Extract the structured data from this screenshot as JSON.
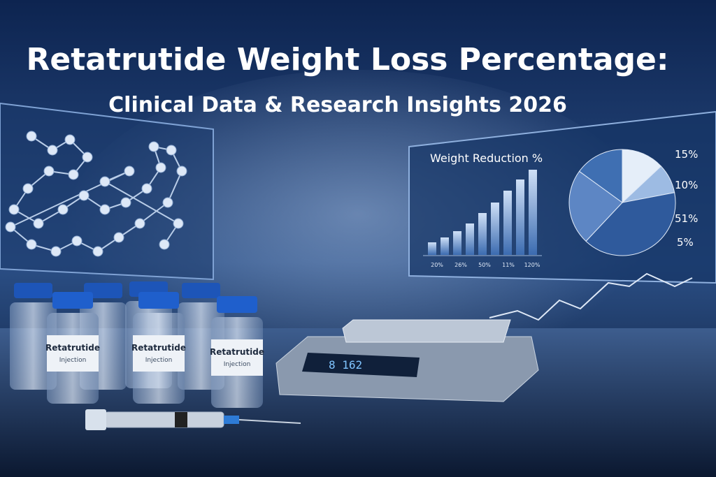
{
  "header": {
    "title": "Retatrutide Weight Loss Percentage:",
    "subtitle": "Clinical Data & Research Insights 2026"
  },
  "screen": {
    "title": "Weight Reduction %",
    "bar_labels": [
      "20%",
      "26%",
      "50%",
      "11%",
      "120%"
    ],
    "pie_labels": [
      "15%",
      "10%",
      "51%",
      "5%"
    ]
  },
  "vials": [
    {
      "name": "Retatrutide",
      "label": "Injection"
    },
    {
      "name": "Retatrutide",
      "label": "Injection"
    },
    {
      "name": "Retatrutide",
      "label": "Injection"
    }
  ],
  "scale": {
    "display": "8 162"
  }
}
